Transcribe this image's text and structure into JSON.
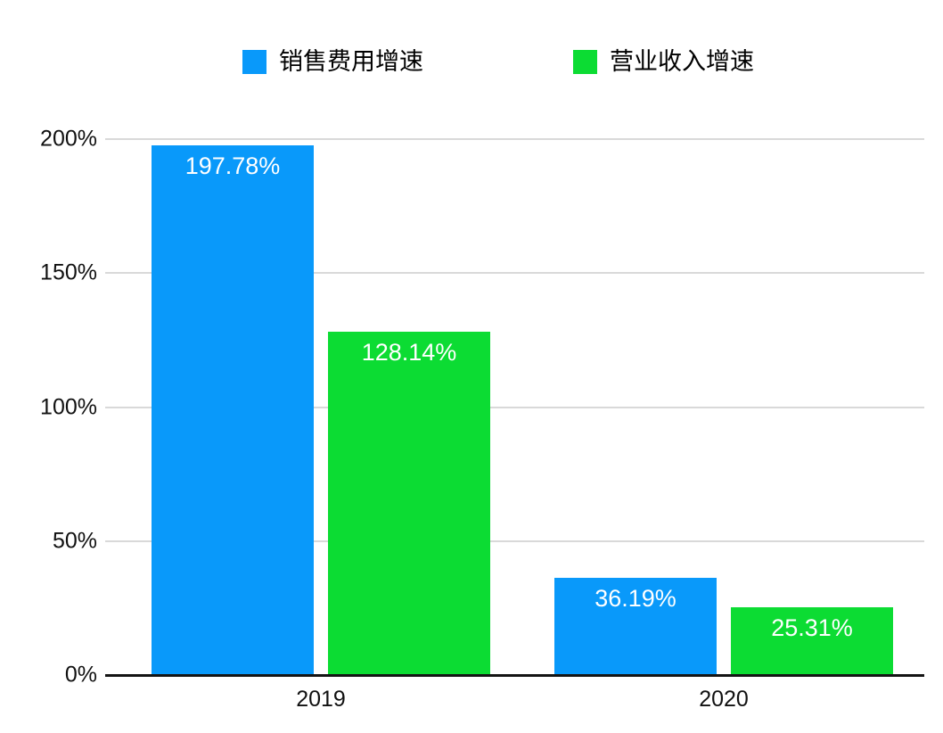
{
  "chart_data": {
    "type": "bar",
    "categories": [
      "2019",
      "2020"
    ],
    "series": [
      {
        "name": "销售费用增速",
        "color": "#0999FA",
        "values": [
          197.78,
          36.19
        ],
        "value_labels": [
          "197.78%",
          "36.19%"
        ]
      },
      {
        "name": "营业收入增速",
        "color": "#0CDC33",
        "values": [
          128.14,
          25.31
        ],
        "value_labels": [
          "128.14%",
          "25.31%"
        ]
      }
    ],
    "title": "",
    "xlabel": "",
    "ylabel": "",
    "ylim": [
      0,
      200
    ],
    "y_ticks": [
      0,
      50,
      100,
      150,
      200
    ],
    "y_tick_labels": [
      "0%",
      "50%",
      "100%",
      "150%",
      "200%"
    ],
    "grid": true,
    "legend_position": "top",
    "value_label_color": "#ffffff",
    "gridline_color": "#d9d9d9",
    "axis_line_color": "#141414"
  }
}
